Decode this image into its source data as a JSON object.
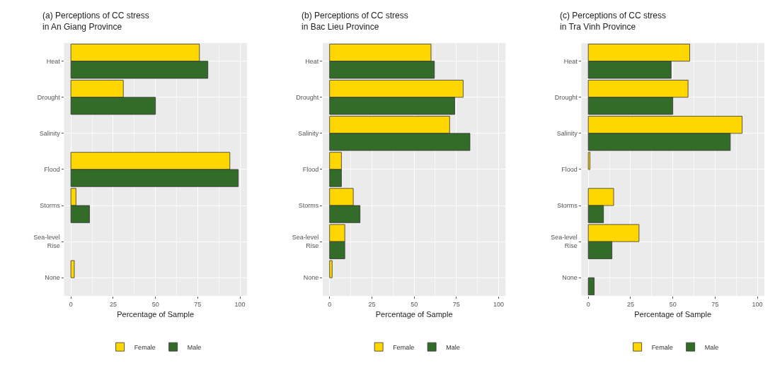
{
  "chart_data": [
    {
      "type": "bar",
      "orientation": "horizontal",
      "title": "(a) Perceptions of CC stress\nin An Giang Province",
      "xlabel": "Percentage of Sample",
      "categories": [
        "Heat",
        "Drought",
        "Salinity",
        "Flood",
        "Storms",
        "Sea-level Rise",
        "None"
      ],
      "series": [
        {
          "name": "Female",
          "color": "#ffd700",
          "values": [
            76,
            31,
            0,
            94,
            3,
            0,
            2
          ]
        },
        {
          "name": "Male",
          "color": "#336b29",
          "values": [
            81,
            50,
            0,
            99,
            11,
            0,
            0
          ]
        }
      ],
      "xlim": [
        -4,
        104
      ],
      "xticks": [
        0,
        25,
        50,
        75,
        100
      ],
      "grid": true,
      "legend": "bottom"
    },
    {
      "type": "bar",
      "orientation": "horizontal",
      "title": "(b) Perceptions of CC stress\nin Bac Lieu Province",
      "xlabel": "Percentage of Sample",
      "categories": [
        "Heat",
        "Drought",
        "Salinity",
        "Flood",
        "Storms",
        "Sea-level Rise",
        "None"
      ],
      "series": [
        {
          "name": "Female",
          "color": "#ffd700",
          "values": [
            60,
            79,
            71,
            7,
            14,
            9,
            1.5
          ]
        },
        {
          "name": "Male",
          "color": "#336b29",
          "values": [
            62,
            74,
            83,
            7,
            18,
            9,
            0
          ]
        }
      ],
      "xlim": [
        -4,
        104
      ],
      "xticks": [
        0,
        25,
        50,
        75,
        100
      ],
      "grid": true,
      "legend": "bottom"
    },
    {
      "type": "bar",
      "orientation": "horizontal",
      "title": "(c) Perceptions of CC stress\nin Tra Vinh Province",
      "xlabel": "Percentage of Sample",
      "categories": [
        "Heat",
        "Drought",
        "Salinity",
        "Flood",
        "Storms",
        "Sea-level Rise",
        "None"
      ],
      "series": [
        {
          "name": "Female",
          "color": "#ffd700",
          "values": [
            60,
            59,
            91,
            1,
            15,
            30,
            0
          ]
        },
        {
          "name": "Male",
          "color": "#336b29",
          "values": [
            49,
            50,
            84,
            0,
            9,
            14,
            3.5
          ]
        }
      ],
      "xlim": [
        -4,
        104
      ],
      "xticks": [
        0,
        25,
        50,
        75,
        100
      ],
      "grid": true,
      "legend": "bottom"
    }
  ]
}
